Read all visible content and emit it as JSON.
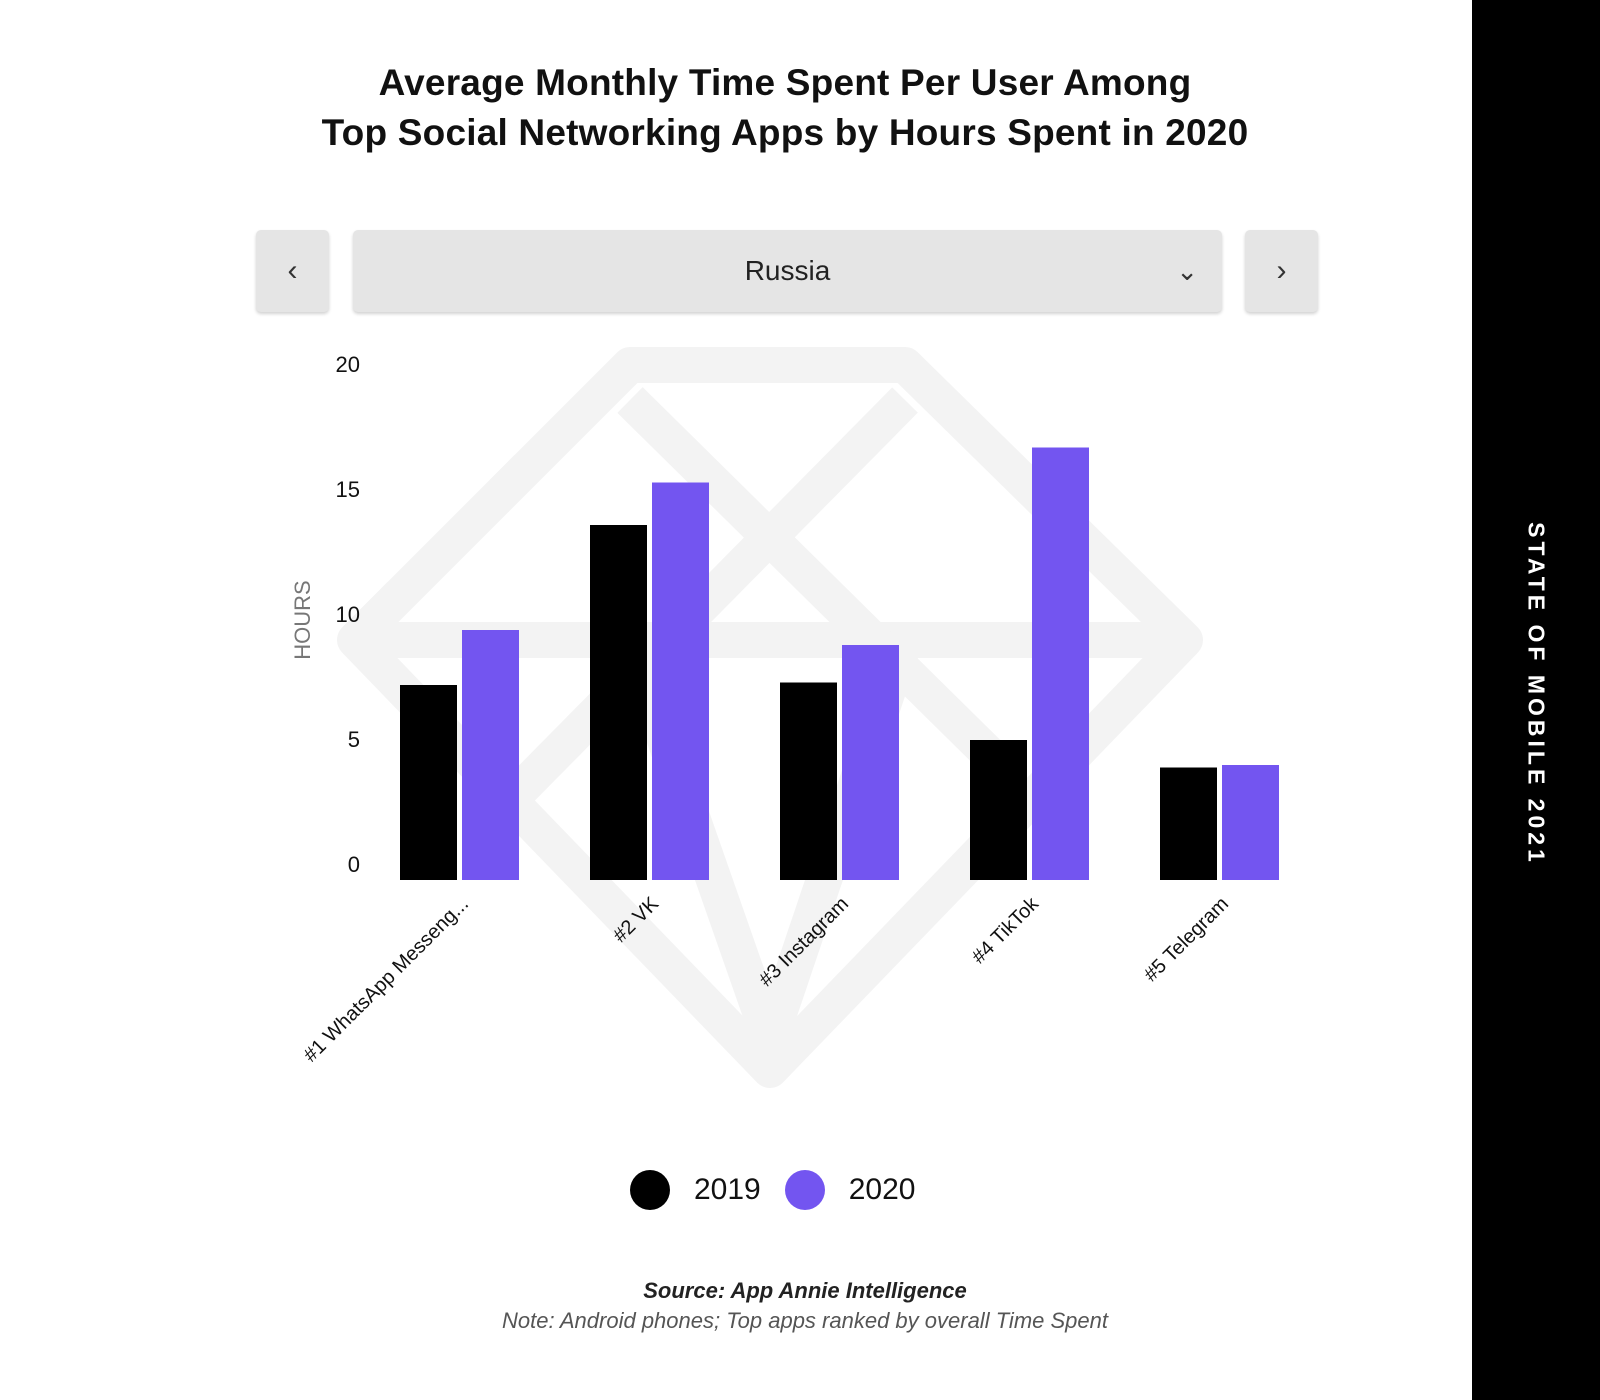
{
  "header": {
    "title_line1": "Average Monthly Time Spent Per User Among",
    "title_line2": "Top Social Networking Apps by Hours Spent in 2020"
  },
  "selector": {
    "prev_icon": "chevron-left-icon",
    "next_icon": "chevron-right-icon",
    "value": "Russia",
    "dropdown_icon": "chevron-down-icon"
  },
  "sidebar": {
    "text": "STATE OF MOBILE 2021"
  },
  "colors": {
    "2019": "#000000",
    "2020": "#7355f0"
  },
  "chart_data": {
    "type": "bar",
    "ylabel": "HOURS",
    "ylim": [
      0,
      20
    ],
    "yticks": [
      0,
      5,
      10,
      15,
      20
    ],
    "categories": [
      "#1 WhatsApp Messeng...",
      "#2 VK",
      "#3 Instagram",
      "#4 TikTok",
      "#5 Telegram"
    ],
    "series": [
      {
        "name": "2019",
        "values": [
          7.8,
          14.2,
          7.9,
          5.6,
          4.5
        ]
      },
      {
        "name": "2020",
        "values": [
          10.0,
          15.9,
          9.4,
          17.3,
          4.6
        ]
      }
    ],
    "grid": false,
    "legend": "bottom-center"
  },
  "footer": {
    "source": "Source: App Annie Intelligence",
    "note": "Note: Android phones; Top apps ranked by overall Time Spent"
  }
}
